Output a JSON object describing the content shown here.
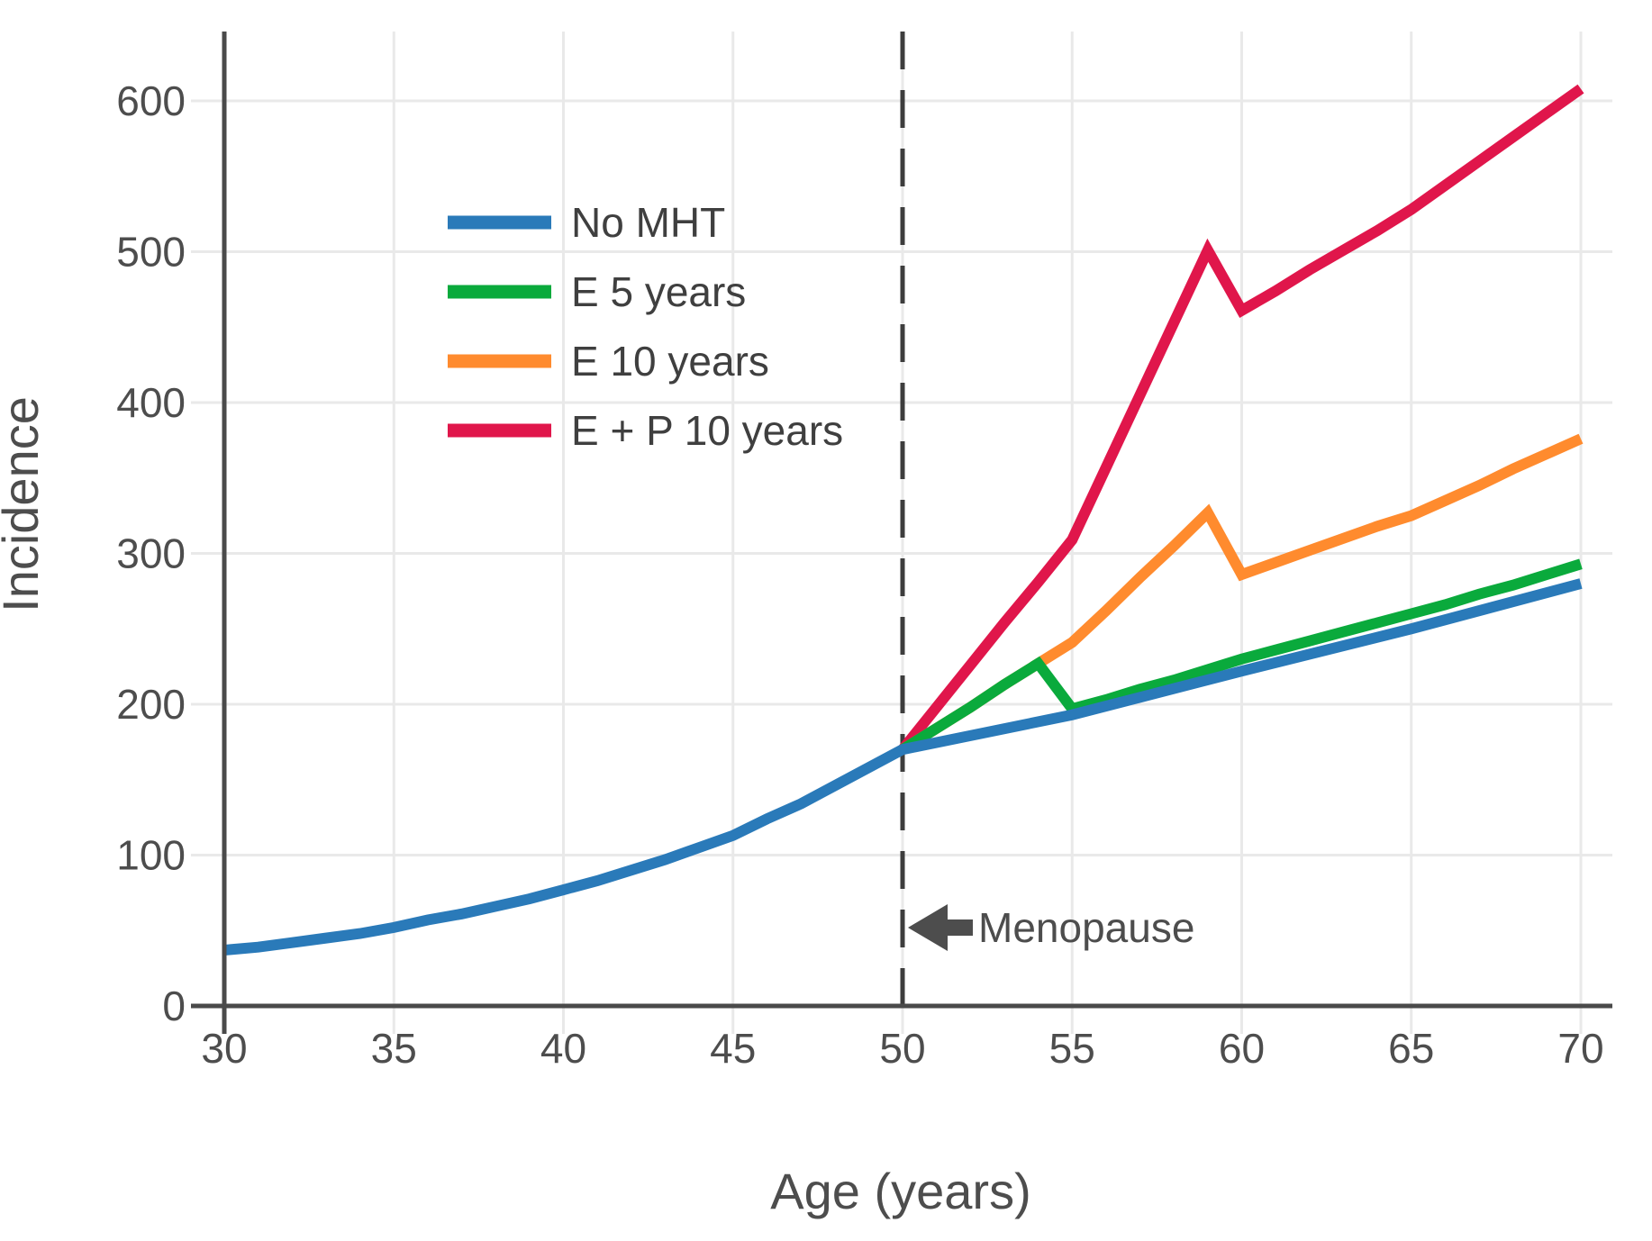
{
  "chart_data": {
    "type": "line",
    "title": "",
    "xlabel": "Age (years)",
    "ylabel": "Incidence",
    "xlim": [
      30,
      71
    ],
    "ylim": [
      0,
      645
    ],
    "xticks": [
      30,
      35,
      40,
      45,
      50,
      55,
      60,
      65,
      70
    ],
    "yticks": [
      0,
      100,
      200,
      300,
      400,
      500,
      600
    ],
    "grid": true,
    "legend_position": "upper-left-inside",
    "series": [
      {
        "name": "No MHT",
        "color": "#2a7ab9",
        "points": [
          [
            30,
            37
          ],
          [
            31,
            39
          ],
          [
            32,
            42
          ],
          [
            33,
            45
          ],
          [
            34,
            48
          ],
          [
            35,
            52
          ],
          [
            36,
            57
          ],
          [
            37,
            61
          ],
          [
            38,
            66
          ],
          [
            39,
            71
          ],
          [
            40,
            77
          ],
          [
            41,
            83
          ],
          [
            42,
            90
          ],
          [
            43,
            97
          ],
          [
            44,
            105
          ],
          [
            45,
            113
          ],
          [
            46,
            124
          ],
          [
            47,
            134
          ],
          [
            48,
            146
          ],
          [
            49,
            158
          ],
          [
            50,
            170
          ],
          [
            55,
            193
          ],
          [
            60,
            222
          ],
          [
            65,
            250
          ],
          [
            70,
            280
          ]
        ]
      },
      {
        "name": "E 5 years",
        "color": "#0aaa3c",
        "points": [
          [
            50,
            170
          ],
          [
            51,
            184
          ],
          [
            52,
            198
          ],
          [
            53,
            213
          ],
          [
            54,
            227
          ],
          [
            55,
            197
          ],
          [
            56,
            203
          ],
          [
            57,
            210
          ],
          [
            58,
            216
          ],
          [
            59,
            223
          ],
          [
            60,
            230
          ],
          [
            61,
            236
          ],
          [
            62,
            242
          ],
          [
            63,
            248
          ],
          [
            64,
            254
          ],
          [
            65,
            260
          ],
          [
            66,
            266
          ],
          [
            67,
            273
          ],
          [
            68,
            279
          ],
          [
            69,
            286
          ],
          [
            70,
            293
          ]
        ]
      },
      {
        "name": "E 10 years",
        "color": "#ff8b2e",
        "points": [
          [
            50,
            170
          ],
          [
            51,
            184
          ],
          [
            52,
            198
          ],
          [
            53,
            213
          ],
          [
            54,
            227
          ],
          [
            55,
            241
          ],
          [
            56,
            262
          ],
          [
            57,
            284
          ],
          [
            58,
            305
          ],
          [
            59,
            327
          ],
          [
            60,
            286
          ],
          [
            61,
            294
          ],
          [
            62,
            302
          ],
          [
            63,
            310
          ],
          [
            64,
            318
          ],
          [
            65,
            325
          ],
          [
            66,
            335
          ],
          [
            67,
            345
          ],
          [
            68,
            356
          ],
          [
            69,
            366
          ],
          [
            70,
            376
          ]
        ]
      },
      {
        "name": "E + P 10 years",
        "color": "#e0164b",
        "points": [
          [
            50,
            170
          ],
          [
            51,
            198
          ],
          [
            52,
            226
          ],
          [
            53,
            254
          ],
          [
            54,
            281
          ],
          [
            55,
            309
          ],
          [
            56,
            357
          ],
          [
            57,
            405
          ],
          [
            58,
            453
          ],
          [
            59,
            501
          ],
          [
            60,
            461
          ],
          [
            61,
            474
          ],
          [
            62,
            488
          ],
          [
            63,
            501
          ],
          [
            64,
            514
          ],
          [
            65,
            528
          ],
          [
            66,
            544
          ],
          [
            67,
            560
          ],
          [
            68,
            576
          ],
          [
            69,
            592
          ],
          [
            70,
            608
          ]
        ]
      }
    ],
    "annotations": {
      "vline": {
        "x": 50,
        "style": "dashed",
        "color": "#3d3d3d"
      },
      "arrow_label": {
        "text": "Menopause",
        "x": 50,
        "y": 52,
        "direction": "left"
      }
    }
  }
}
